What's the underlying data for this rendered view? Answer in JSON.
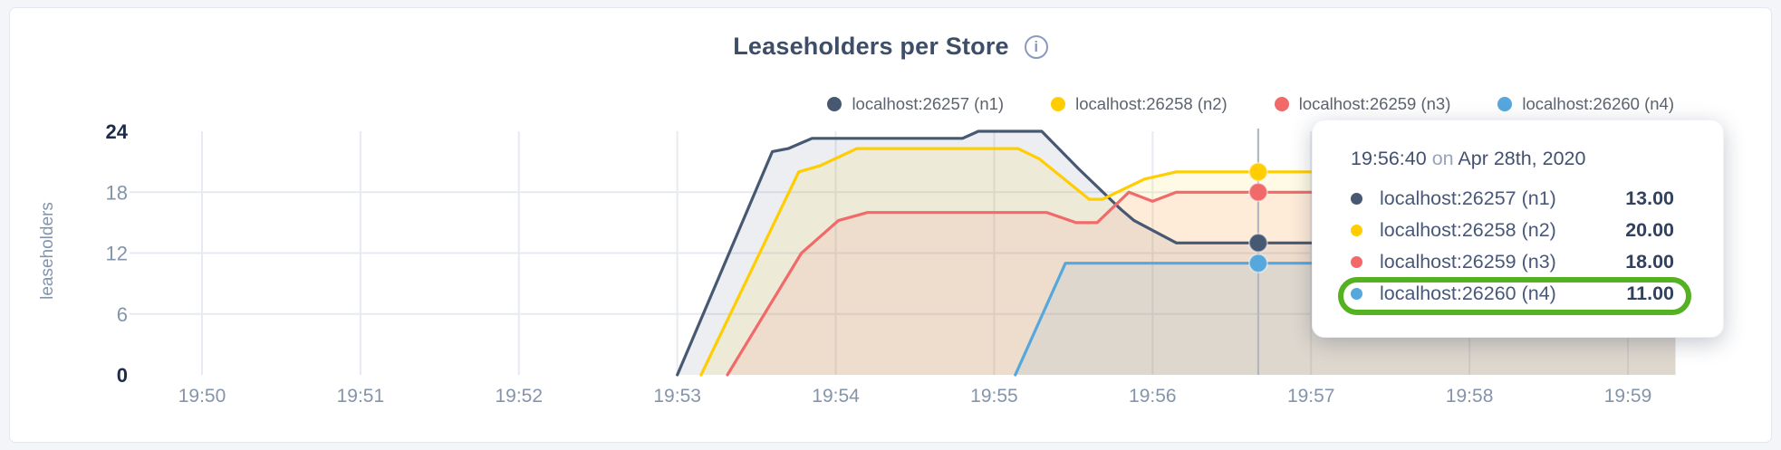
{
  "header": {
    "title": "Leaseholders per Store",
    "info_glyph": "i"
  },
  "legend": {
    "items": [
      {
        "label": "localhost:26257 (n1)",
        "color": "#475872"
      },
      {
        "label": "localhost:26258 (n2)",
        "color": "#FFCD02"
      },
      {
        "label": "localhost:26259 (n3)",
        "color": "#F16969"
      },
      {
        "label": "localhost:26260 (n4)",
        "color": "#55A7DC"
      }
    ]
  },
  "chart_data": {
    "type": "area",
    "title": "Leaseholders per Store",
    "ylabel": "leaseholders",
    "xlabel": "",
    "x_unit": "seconds after 19:50",
    "x_domain": [
      -27,
      558
    ],
    "ylim": [
      0,
      24
    ],
    "grid": true,
    "legend_position": "top-right",
    "y_ticks": [
      {
        "v": 0,
        "label": "0",
        "strong": true,
        "gridline": false
      },
      {
        "v": 6,
        "label": "6",
        "strong": false,
        "gridline": true
      },
      {
        "v": 12,
        "label": "12",
        "strong": false,
        "gridline": true
      },
      {
        "v": 18,
        "label": "18",
        "strong": false,
        "gridline": true
      },
      {
        "v": 24,
        "label": "24",
        "strong": true,
        "gridline": false
      }
    ],
    "x_ticks": [
      {
        "t": 0,
        "label": "19:50"
      },
      {
        "t": 60,
        "label": "19:51"
      },
      {
        "t": 120,
        "label": "19:52"
      },
      {
        "t": 180,
        "label": "19:53"
      },
      {
        "t": 240,
        "label": "19:54"
      },
      {
        "t": 300,
        "label": "19:55"
      },
      {
        "t": 360,
        "label": "19:56"
      },
      {
        "t": 420,
        "label": "19:57"
      },
      {
        "t": 480,
        "label": "19:58"
      },
      {
        "t": 540,
        "label": "19:59"
      }
    ],
    "series": [
      {
        "name": "localhost:26257 (n1)",
        "color": "#475872",
        "hover_value": 13,
        "points": [
          [
            180,
            0
          ],
          [
            216,
            22
          ],
          [
            222,
            22.3
          ],
          [
            231,
            23.3
          ],
          [
            288,
            23.3
          ],
          [
            294,
            24
          ],
          [
            318,
            24
          ],
          [
            332,
            20.3
          ],
          [
            344,
            17.3
          ],
          [
            348,
            16.3
          ],
          [
            353,
            15.2
          ],
          [
            369,
            13
          ],
          [
            558,
            13
          ]
        ]
      },
      {
        "name": "localhost:26258 (n2)",
        "color": "#FFCD02",
        "hover_value": 20,
        "points": [
          [
            189,
            0
          ],
          [
            226,
            20
          ],
          [
            234,
            20.6
          ],
          [
            248,
            22.3
          ],
          [
            309,
            22.3
          ],
          [
            317,
            21.3
          ],
          [
            336,
            17.3
          ],
          [
            341,
            17.3
          ],
          [
            357,
            19.3
          ],
          [
            369,
            20
          ],
          [
            558,
            20
          ]
        ]
      },
      {
        "name": "localhost:26259 (n3)",
        "color": "#F16969",
        "hover_value": 18,
        "points": [
          [
            199,
            0
          ],
          [
            227,
            12
          ],
          [
            241,
            15.2
          ],
          [
            252,
            16
          ],
          [
            320,
            16
          ],
          [
            331,
            15
          ],
          [
            339,
            15
          ],
          [
            351,
            18
          ],
          [
            360,
            17.1
          ],
          [
            369,
            18
          ],
          [
            558,
            18
          ]
        ]
      },
      {
        "name": "localhost:26260 (n4)",
        "color": "#55A7DC",
        "hover_value": 11,
        "points": [
          [
            308,
            0
          ],
          [
            327,
            11
          ],
          [
            558,
            11
          ]
        ]
      }
    ],
    "hover": {
      "t": 400,
      "time_label": "19:56:40"
    }
  },
  "tooltip": {
    "time": "19:56:40",
    "connector": "on",
    "date": "Apr 28th, 2020",
    "rows": [
      {
        "label": "localhost:26257 (n1)",
        "value": "13.00",
        "color": "#475872",
        "highlighted": false
      },
      {
        "label": "localhost:26258 (n2)",
        "value": "20.00",
        "color": "#FFCD02",
        "highlighted": false
      },
      {
        "label": "localhost:26259 (n3)",
        "value": "18.00",
        "color": "#F16969",
        "highlighted": false
      },
      {
        "label": "localhost:26260 (n4)",
        "value": "11.00",
        "color": "#55A7DC",
        "highlighted": true
      }
    ]
  },
  "colors": {
    "page_bg": "#f3f5f9",
    "card_bg": "#ffffff",
    "gridline": "#e7eaf0",
    "hover_line": "#b3b8c0",
    "tick_strong": "#1e2b49",
    "tick_muted": "#8494aa",
    "annotation_green": "#54b120"
  }
}
